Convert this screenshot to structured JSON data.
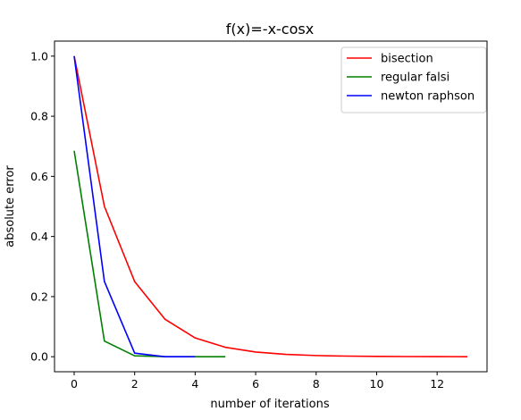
{
  "chart_data": {
    "type": "line",
    "title": "f(x)=-x-cosx",
    "xlabel": "number of iterations",
    "ylabel": "absolute error",
    "xlim": [
      -0.65,
      13.65
    ],
    "ylim": [
      -0.05,
      1.05
    ],
    "xticks": [
      0,
      2,
      4,
      6,
      8,
      10,
      12
    ],
    "yticks": [
      0.0,
      0.2,
      0.4,
      0.6,
      0.8,
      1.0
    ],
    "grid": false,
    "legend_position": "top-right",
    "series": [
      {
        "name": "bisection",
        "color": "#ff0000",
        "x": [
          0,
          1,
          2,
          3,
          4,
          5,
          6,
          7,
          8,
          9,
          10,
          11,
          12,
          13
        ],
        "y": [
          1.0,
          0.5,
          0.25,
          0.125,
          0.0625,
          0.03125,
          0.015625,
          0.0078,
          0.0039,
          0.002,
          0.001,
          0.0005,
          0.00024,
          0.00012
        ]
      },
      {
        "name": "regular falsi",
        "color": "#008000",
        "x": [
          0,
          1,
          2,
          3,
          4,
          5
        ],
        "y": [
          0.685,
          0.052,
          0.003,
          0.0002,
          1e-05,
          0.0
        ]
      },
      {
        "name": "newton raphson",
        "color": "#0000ff",
        "x": [
          0,
          1,
          2,
          3,
          4
        ],
        "y": [
          1.0,
          0.25,
          0.012,
          0.0001,
          0.0
        ]
      }
    ]
  }
}
